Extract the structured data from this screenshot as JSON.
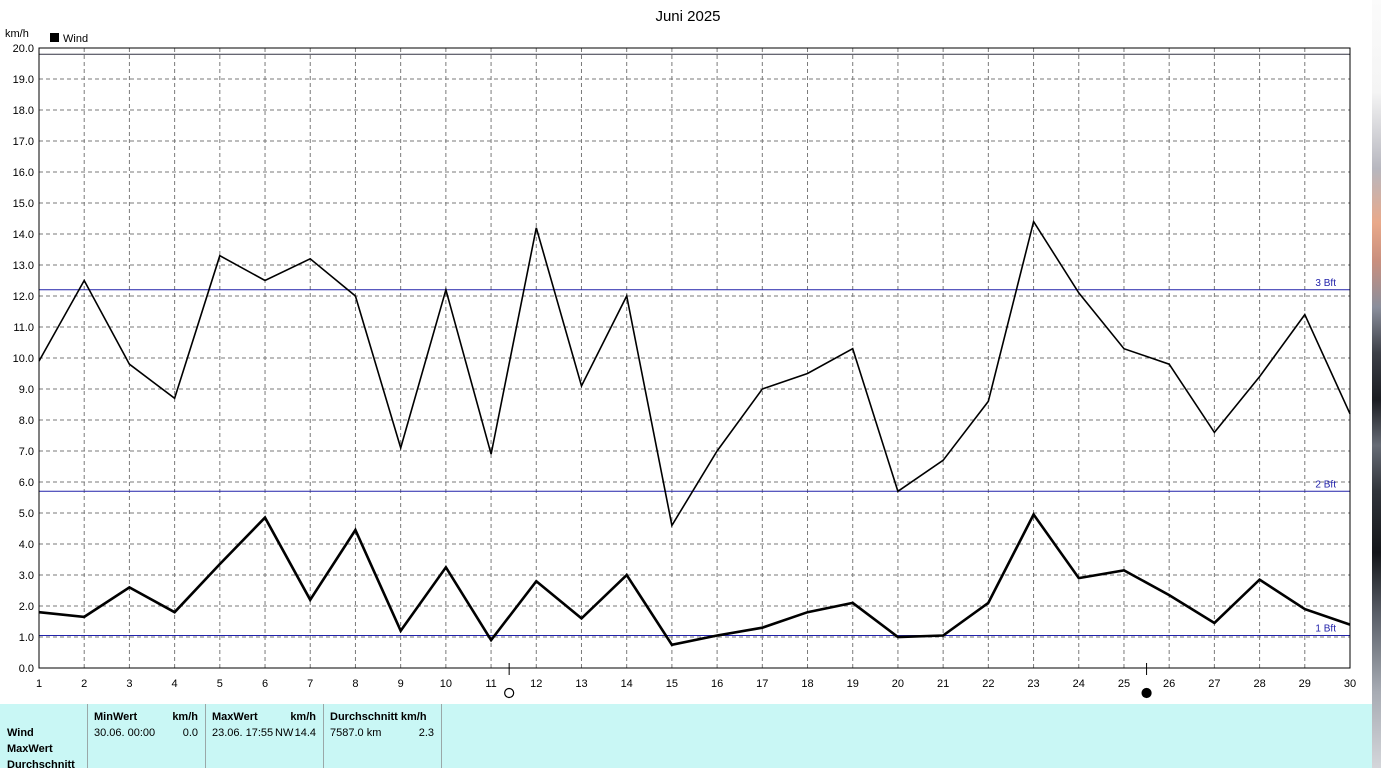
{
  "chart_data": {
    "type": "line",
    "title": "Juni 2025",
    "ylabel": "km/h",
    "legend": {
      "label": "Wind",
      "placement": "top-left"
    },
    "ylim": [
      0,
      20
    ],
    "ytick_labels": [
      "0.0",
      "1.0",
      "2.0",
      "3.0",
      "4.0",
      "5.0",
      "6.0",
      "7.0",
      "8.0",
      "9.0",
      "10.0",
      "11.0",
      "12.0",
      "13.0",
      "14.0",
      "15.0",
      "16.0",
      "17.0",
      "18.0",
      "19.0",
      "20.0"
    ],
    "xlim": [
      1,
      30
    ],
    "x": [
      1,
      2,
      3,
      4,
      5,
      6,
      7,
      8,
      9,
      10,
      11,
      12,
      13,
      14,
      15,
      16,
      17,
      18,
      19,
      20,
      21,
      22,
      23,
      24,
      25,
      26,
      27,
      28,
      29,
      30
    ],
    "grid": true,
    "series": [
      {
        "values": [
          9.9,
          12.5,
          9.8,
          8.7,
          13.3,
          12.5,
          13.2,
          12.0,
          7.1,
          12.2,
          6.9,
          14.2,
          9.1,
          12.0,
          4.6,
          7.0,
          9.0,
          9.5,
          10.3,
          5.7,
          6.7,
          8.6,
          14.4,
          12.1,
          10.3,
          9.8,
          7.6,
          9.4,
          11.4,
          8.2
        ]
      },
      {
        "values": [
          1.8,
          1.65,
          2.6,
          1.8,
          3.35,
          4.85,
          2.2,
          4.45,
          1.2,
          3.25,
          0.9,
          2.8,
          1.6,
          3.0,
          0.75,
          1.05,
          1.3,
          1.8,
          2.1,
          1.0,
          1.05,
          2.1,
          4.95,
          2.9,
          3.15,
          2.35,
          1.45,
          2.85,
          1.9,
          1.4
        ]
      }
    ],
    "reference_lines": [
      {
        "label": "1 Bft",
        "value": 1.05
      },
      {
        "label": "2 Bft",
        "value": 5.7
      },
      {
        "label": "3 Bft",
        "value": 12.2
      },
      {
        "value": 19.8
      }
    ],
    "moon_phases": [
      {
        "phase": "full",
        "x": 11.4
      },
      {
        "phase": "new",
        "x": 25.5
      }
    ]
  },
  "stats": {
    "rows": [
      "Wind",
      "MaxWert",
      "Durchschnitt"
    ],
    "min": {
      "header": "MinWert",
      "unit": "km/h",
      "time": "30.06.  00:00",
      "value": "0.0"
    },
    "max": {
      "header": "MaxWert",
      "unit": "km/h",
      "time": "23.06.  17:55",
      "dir": "NW",
      "value": "14.4"
    },
    "avg": {
      "header": "Durchschnitt km/h",
      "distance": "7587.0 km",
      "value": "2.3"
    }
  }
}
